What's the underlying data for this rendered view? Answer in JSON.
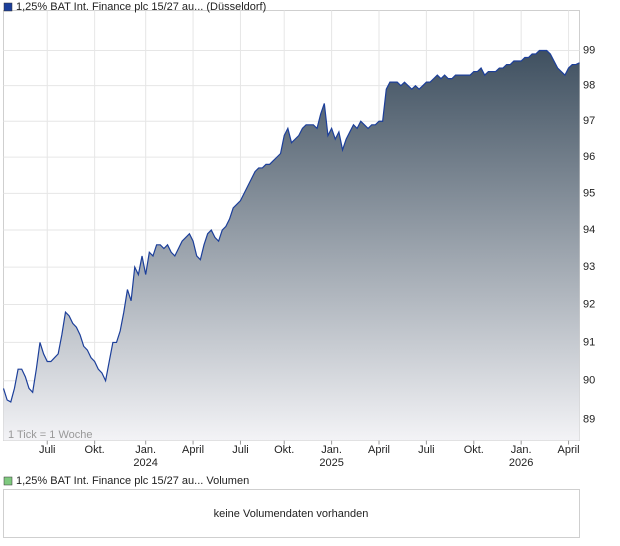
{
  "chart_data": {
    "type": "area",
    "series": [
      {
        "name": "1,25% BAT Int. Finance plc 15/27 au... (Düsseldorf)",
        "color": "#1c3f9a",
        "values": [
          89.8,
          89.5,
          89.45,
          89.8,
          90.3,
          90.3,
          90.1,
          89.8,
          89.7,
          90.3,
          91.0,
          90.7,
          90.5,
          90.5,
          90.6,
          90.7,
          91.2,
          91.8,
          91.7,
          91.5,
          91.4,
          91.2,
          90.9,
          90.8,
          90.6,
          90.5,
          90.3,
          90.2,
          90.0,
          90.5,
          91.0,
          91.0,
          91.3,
          91.8,
          92.4,
          92.1,
          93.0,
          92.8,
          93.3,
          92.8,
          93.4,
          93.3,
          93.6,
          93.6,
          93.5,
          93.6,
          93.4,
          93.3,
          93.5,
          93.7,
          93.8,
          93.9,
          93.7,
          93.3,
          93.2,
          93.6,
          93.9,
          94.0,
          93.8,
          93.7,
          94.0,
          94.1,
          94.3,
          94.6,
          94.7,
          94.8,
          95.0,
          95.2,
          95.4,
          95.6,
          95.7,
          95.7,
          95.8,
          95.8,
          95.9,
          96.0,
          96.1,
          96.6,
          96.8,
          96.4,
          96.5,
          96.6,
          96.8,
          96.9,
          96.9,
          96.9,
          96.8,
          97.2,
          97.5,
          96.6,
          96.8,
          96.5,
          96.7,
          96.2,
          96.5,
          96.7,
          96.9,
          96.8,
          97.0,
          96.9,
          96.8,
          96.9,
          96.9,
          97.0,
          97.0,
          97.9,
          98.1,
          98.1,
          98.1,
          98.0,
          98.1,
          98.0,
          97.9,
          98.0,
          97.9,
          98.0,
          98.1,
          98.1,
          98.2,
          98.3,
          98.2,
          98.3,
          98.2,
          98.2,
          98.3,
          98.3,
          98.3,
          98.3,
          98.3,
          98.4,
          98.4,
          98.5,
          98.3,
          98.4,
          98.4,
          98.4,
          98.5,
          98.5,
          98.6,
          98.6,
          98.7,
          98.7,
          98.7,
          98.8,
          98.8,
          98.9,
          98.9,
          99.0,
          99.0,
          99.0,
          98.9,
          98.7,
          98.5,
          98.4,
          98.3,
          98.5,
          98.6,
          98.6,
          98.65
        ]
      }
    ],
    "xlim": [
      0,
      158
    ],
    "xticks": [
      {
        "value": 12,
        "label": "Juli"
      },
      {
        "value": 25,
        "label": "Okt."
      },
      {
        "value": 39,
        "label": "Jan.",
        "year": "2024"
      },
      {
        "value": 52,
        "label": "April"
      },
      {
        "value": 65,
        "label": "Juli"
      },
      {
        "value": 77,
        "label": "Okt."
      },
      {
        "value": 90,
        "label": "Jan.",
        "year": "2025"
      },
      {
        "value": 103,
        "label": "April"
      },
      {
        "value": 116,
        "label": "Juli"
      },
      {
        "value": 129,
        "label": "Okt."
      },
      {
        "value": 142,
        "label": "Jan.",
        "year": "2026"
      },
      {
        "value": 155,
        "label": "April"
      }
    ],
    "ylim": [
      88.46,
      100.15
    ],
    "yticks": [
      89,
      90,
      91,
      92,
      93,
      94,
      95,
      96,
      97,
      98,
      99
    ],
    "log_scale": true,
    "grid": true,
    "note": "1 Tick = 1 Woche",
    "volume": {
      "legend": "1,25% BAT Int. Finance plc 15/27 au... Volumen",
      "color": "#7fc97f",
      "message": "keine Volumendaten vorhanden"
    }
  }
}
